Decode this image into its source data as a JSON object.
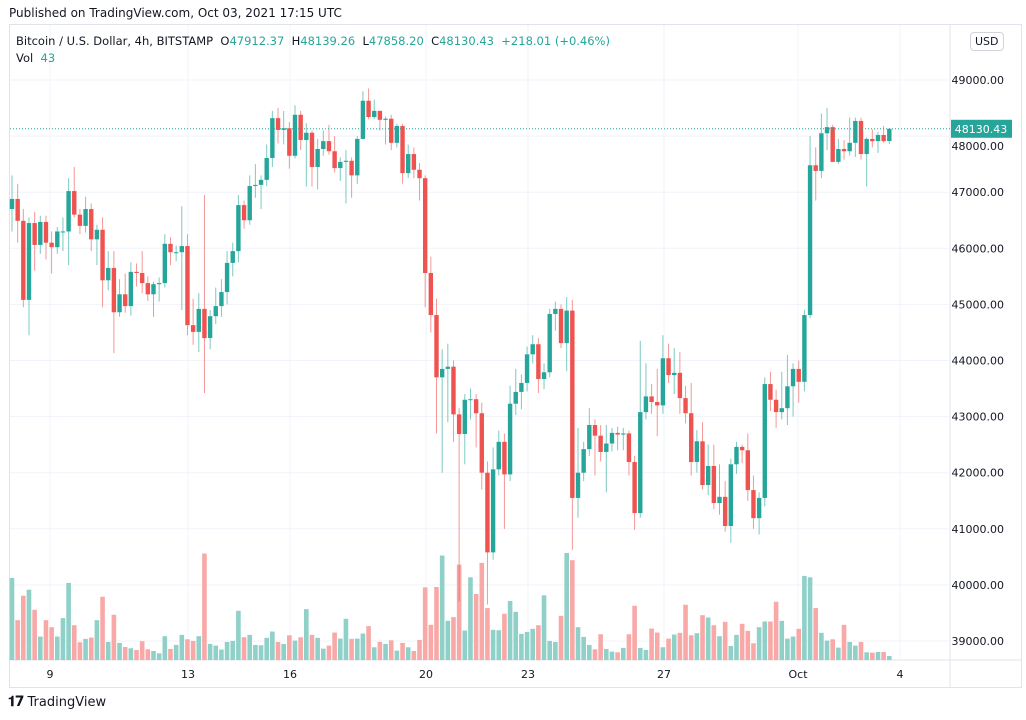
{
  "published": "Published on TradingView.com, Oct 03, 2021 17:15 UTC",
  "legend": {
    "symbol": "Bitcoin / U.S. Dollar, 4h, BITSTAMP",
    "o_label": "O",
    "o": "47912.37",
    "h_label": "H",
    "h": "48139.26",
    "l_label": "L",
    "l": "47858.20",
    "c_label": "C",
    "c": "48130.43",
    "change": "+218.01 (+0.46%)",
    "vol_label": "Vol",
    "vol": "43"
  },
  "currency_button": "USD",
  "footer": {
    "logo_mark": "17",
    "brand": "TradingView"
  },
  "colors": {
    "up": "#26a69a",
    "down": "#ef5350",
    "up_volume": "#8fd0c8",
    "down_volume": "#f8a9a7",
    "grid": "#f0f3fa"
  },
  "chart_data": {
    "type": "candlestick",
    "interval": "4h",
    "price_axis": {
      "ticks": [
        "49000.00",
        "48000.00",
        "47000.00",
        "46000.00",
        "45000.00",
        "44000.00",
        "43000.00",
        "42000.00",
        "41000.00",
        "40000.00",
        "39000.00"
      ],
      "range": [
        38700,
        49600
      ]
    },
    "time_axis": {
      "ticks": [
        "9",
        "13",
        "16",
        "20",
        "23",
        "27",
        "Oct",
        "4"
      ]
    },
    "last_price": "48130.43",
    "grid": true,
    "candles_columns": [
      "open",
      "high",
      "low",
      "close",
      "volume"
    ],
    "candles": [
      [
        46700,
        47300,
        46300,
        46880,
        882
      ],
      [
        46880,
        47150,
        46100,
        46490,
        428
      ],
      [
        46490,
        46700,
        44950,
        45080,
        691
      ],
      [
        45080,
        46550,
        44450,
        46450,
        756
      ],
      [
        46450,
        46650,
        45600,
        46060,
        540
      ],
      [
        46060,
        46580,
        45900,
        46470,
        252
      ],
      [
        46470,
        46580,
        45800,
        46100,
        428
      ],
      [
        46100,
        46300,
        45550,
        46020,
        353
      ],
      [
        46020,
        46380,
        45900,
        46300,
        252
      ],
      [
        46300,
        46550,
        45950,
        46300,
        450
      ],
      [
        46300,
        47250,
        45700,
        47020,
        828
      ],
      [
        47020,
        47450,
        46550,
        46600,
        374
      ],
      [
        46600,
        46700,
        46250,
        46400,
        191
      ],
      [
        46400,
        46920,
        46280,
        46700,
        227
      ],
      [
        46700,
        46800,
        45950,
        46160,
        241
      ],
      [
        46160,
        46420,
        45700,
        46330,
        428
      ],
      [
        46330,
        46550,
        44950,
        45430,
        680
      ],
      [
        45430,
        45950,
        45250,
        45650,
        194
      ],
      [
        45650,
        45950,
        44130,
        44860,
        486
      ],
      [
        44860,
        45450,
        44780,
        45180,
        184
      ],
      [
        45180,
        45550,
        44850,
        44970,
        140
      ],
      [
        44970,
        45750,
        44800,
        45580,
        126
      ],
      [
        45580,
        45730,
        45320,
        45560,
        108
      ],
      [
        45560,
        45950,
        45200,
        45380,
        202
      ],
      [
        45380,
        45500,
        45060,
        45180,
        115
      ],
      [
        45180,
        45400,
        44780,
        45360,
        97
      ],
      [
        45360,
        45480,
        45050,
        45380,
        72
      ],
      [
        45380,
        46250,
        45300,
        46080,
        256
      ],
      [
        46080,
        46200,
        45700,
        45930,
        119
      ],
      [
        45930,
        46050,
        45770,
        45930,
        162
      ],
      [
        45930,
        46750,
        44900,
        46040,
        270
      ],
      [
        46040,
        46250,
        44450,
        44630,
        223
      ],
      [
        44630,
        45100,
        44280,
        44510,
        205
      ],
      [
        44510,
        45200,
        44150,
        44920,
        256
      ],
      [
        44920,
        46950,
        43420,
        44400,
        1145
      ],
      [
        44400,
        44900,
        44200,
        44790,
        173
      ],
      [
        44790,
        45300,
        44650,
        44970,
        155
      ],
      [
        44970,
        45450,
        44780,
        45220,
        112
      ],
      [
        45220,
        45950,
        45000,
        45740,
        194
      ],
      [
        45740,
        46100,
        45500,
        45950,
        205
      ],
      [
        45950,
        46950,
        45750,
        46770,
        529
      ],
      [
        46770,
        46850,
        46350,
        46500,
        245
      ],
      [
        46500,
        47300,
        46420,
        47110,
        270
      ],
      [
        47110,
        47500,
        46900,
        47130,
        162
      ],
      [
        47130,
        47300,
        46700,
        47220,
        158
      ],
      [
        47220,
        47850,
        47110,
        47610,
        238
      ],
      [
        47610,
        48450,
        47450,
        48320,
        306
      ],
      [
        48320,
        48500,
        47870,
        48110,
        194
      ],
      [
        48110,
        48450,
        47850,
        48140,
        173
      ],
      [
        48140,
        48250,
        47420,
        47650,
        266
      ],
      [
        47650,
        48550,
        47600,
        48380,
        209
      ],
      [
        48380,
        48450,
        47750,
        47930,
        245
      ],
      [
        47930,
        48230,
        47100,
        48060,
        547
      ],
      [
        48060,
        48100,
        47100,
        47450,
        270
      ],
      [
        47450,
        47950,
        47050,
        47770,
        238
      ],
      [
        47770,
        48100,
        47650,
        47910,
        122
      ],
      [
        47910,
        48200,
        47670,
        47730,
        155
      ],
      [
        47730,
        48000,
        47350,
        47430,
        295
      ],
      [
        47430,
        47620,
        47200,
        47540,
        230
      ],
      [
        47540,
        47750,
        46800,
        47560,
        443
      ],
      [
        47560,
        47620,
        46900,
        47300,
        227
      ],
      [
        47300,
        48000,
        47150,
        47950,
        230
      ],
      [
        47950,
        48800,
        47950,
        48630,
        284
      ],
      [
        48630,
        48850,
        48300,
        48340,
        364
      ],
      [
        48340,
        48650,
        48300,
        48450,
        137
      ],
      [
        48450,
        48450,
        48100,
        48290,
        194
      ],
      [
        48290,
        48350,
        47850,
        48310,
        173
      ],
      [
        48310,
        48380,
        47750,
        47880,
        212
      ],
      [
        47880,
        48220,
        47800,
        48180,
        101
      ],
      [
        48180,
        48220,
        47150,
        47340,
        184
      ],
      [
        47340,
        47850,
        47250,
        47680,
        137
      ],
      [
        47680,
        47800,
        47250,
        47400,
        97
      ],
      [
        47400,
        47520,
        46850,
        47250,
        216
      ],
      [
        47250,
        47300,
        44950,
        45560,
        781
      ],
      [
        45560,
        45850,
        44500,
        44810,
        378
      ],
      [
        44810,
        45100,
        42700,
        43700,
        785
      ],
      [
        43700,
        44200,
        42000,
        43850,
        1123
      ],
      [
        43850,
        44300,
        42900,
        43890,
        421
      ],
      [
        43890,
        44000,
        42550,
        43040,
        461
      ],
      [
        43040,
        43150,
        39700,
        42690,
        1026
      ],
      [
        42690,
        43400,
        42150,
        43300,
        317
      ],
      [
        43300,
        43500,
        42950,
        43310,
        889
      ],
      [
        43310,
        43400,
        42450,
        43060,
        709
      ],
      [
        43060,
        43250,
        41700,
        42000,
        1044
      ],
      [
        42000,
        42200,
        39650,
        40580,
        558
      ],
      [
        40580,
        42450,
        40450,
        42060,
        324
      ],
      [
        42060,
        42750,
        41950,
        42550,
        320
      ],
      [
        42550,
        42700,
        41000,
        41970,
        497
      ],
      [
        41970,
        43550,
        41850,
        43230,
        634
      ],
      [
        43230,
        43850,
        43030,
        43440,
        518
      ],
      [
        43440,
        43750,
        43130,
        43600,
        281
      ],
      [
        43600,
        44250,
        43450,
        44110,
        302
      ],
      [
        44110,
        44450,
        43950,
        44290,
        335
      ],
      [
        44290,
        44400,
        43420,
        43670,
        374
      ],
      [
        43670,
        43950,
        43490,
        43790,
        695
      ],
      [
        43790,
        44920,
        43700,
        44830,
        205
      ],
      [
        44830,
        45050,
        44530,
        44920,
        194
      ],
      [
        44920,
        45000,
        44220,
        44310,
        475
      ],
      [
        44310,
        45130,
        43810,
        44890,
        1150
      ],
      [
        44890,
        45080,
        40620,
        41550,
        1073
      ],
      [
        41550,
        42800,
        41200,
        42000,
        353
      ],
      [
        42000,
        42550,
        41850,
        42420,
        248
      ],
      [
        42420,
        43150,
        42300,
        42850,
        162
      ],
      [
        42850,
        42950,
        41950,
        42660,
        115
      ],
      [
        42660,
        42850,
        42200,
        42370,
        277
      ],
      [
        42370,
        42850,
        41650,
        42520,
        119
      ],
      [
        42520,
        42800,
        42380,
        42710,
        90
      ],
      [
        42710,
        42820,
        42400,
        42680,
        83
      ],
      [
        42680,
        42800,
        42400,
        42700,
        130
      ],
      [
        42700,
        42750,
        41950,
        42190,
        277
      ],
      [
        42190,
        42300,
        40980,
        41280,
        583
      ],
      [
        41280,
        44350,
        41200,
        43080,
        130
      ],
      [
        43080,
        43950,
        42950,
        43360,
        108
      ],
      [
        43360,
        43580,
        43050,
        43260,
        338
      ],
      [
        43260,
        43850,
        42650,
        43200,
        295
      ],
      [
        43200,
        44450,
        43050,
        44040,
        137
      ],
      [
        44040,
        44300,
        43600,
        43740,
        230
      ],
      [
        43740,
        44220,
        43400,
        43780,
        274
      ],
      [
        43780,
        44150,
        43050,
        43330,
        292
      ],
      [
        43330,
        43550,
        42880,
        43060,
        594
      ],
      [
        43060,
        43600,
        41950,
        42190,
        266
      ],
      [
        42190,
        42760,
        42000,
        42560,
        288
      ],
      [
        42560,
        42900,
        41700,
        41780,
        482
      ],
      [
        41780,
        42500,
        41600,
        42120,
        457
      ],
      [
        42120,
        42500,
        41350,
        41460,
        374
      ],
      [
        41460,
        42150,
        41250,
        41570,
        256
      ],
      [
        41570,
        41850,
        40950,
        41050,
        410
      ],
      [
        41050,
        42250,
        40750,
        42150,
        151
      ],
      [
        42150,
        42550,
        41980,
        42460,
        270
      ],
      [
        42460,
        42500,
        42170,
        42400,
        389
      ],
      [
        42400,
        42700,
        41500,
        41690,
        313
      ],
      [
        41690,
        41950,
        41000,
        41190,
        180
      ],
      [
        41190,
        41650,
        40900,
        41550,
        353
      ],
      [
        41550,
        43700,
        41400,
        43580,
        414
      ],
      [
        43580,
        43800,
        43100,
        43300,
        414
      ],
      [
        43300,
        43480,
        42800,
        43080,
        626
      ],
      [
        43080,
        43800,
        42950,
        43150,
        421
      ],
      [
        43150,
        44100,
        42850,
        43540,
        230
      ],
      [
        43540,
        43950,
        43000,
        43850,
        252
      ],
      [
        43850,
        44000,
        43250,
        43620,
        335
      ],
      [
        43620,
        44900,
        43450,
        44810,
        904
      ],
      [
        44810,
        48000,
        44750,
        47480,
        889
      ],
      [
        47480,
        47800,
        46850,
        47380,
        558
      ],
      [
        47380,
        48400,
        47250,
        48050,
        292
      ],
      [
        48050,
        48500,
        47750,
        48160,
        209
      ],
      [
        48160,
        48200,
        47550,
        47540,
        223
      ],
      [
        47540,
        47950,
        47500,
        47770,
        133
      ],
      [
        47770,
        47930,
        47580,
        47730,
        378
      ],
      [
        47730,
        48330,
        47650,
        47880,
        194
      ],
      [
        47880,
        48330,
        47630,
        48270,
        155
      ],
      [
        48270,
        48330,
        47580,
        47680,
        194
      ],
      [
        47680,
        47980,
        47100,
        47950,
        83
      ],
      [
        47950,
        48120,
        47800,
        47910,
        79
      ],
      [
        47910,
        48080,
        47700,
        48020,
        86
      ],
      [
        48020,
        48180,
        47880,
        47910,
        86
      ],
      [
        47912.37,
        48139.26,
        47858.2,
        48130.43,
        43
      ]
    ]
  }
}
